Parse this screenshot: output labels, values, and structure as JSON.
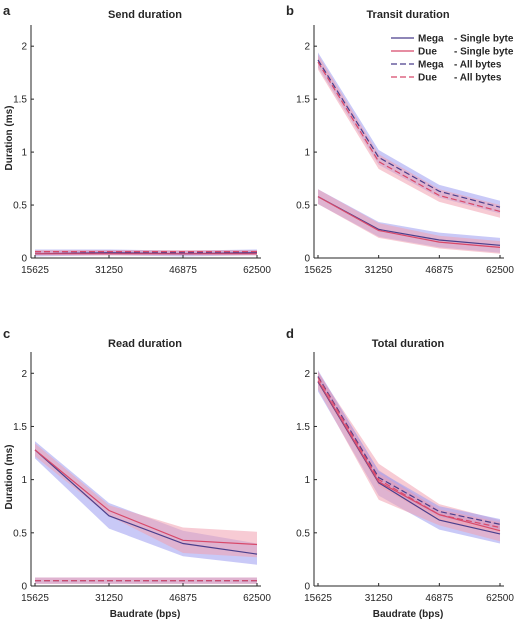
{
  "colors": {
    "mega": "#4a3f8c",
    "due": "#d8496a",
    "mega_band": "#9c9cf0",
    "due_band": "#f0a0b0",
    "axis": "#262626"
  },
  "legend": [
    {
      "name": "Mega",
      "desc": "Single byte",
      "series": "mega",
      "dash": false
    },
    {
      "name": "Due",
      "desc": "Single byte",
      "series": "due",
      "dash": false
    },
    {
      "name": "Mega",
      "desc": "All bytes",
      "series": "mega",
      "dash": true
    },
    {
      "name": "Due",
      "desc": "All bytes",
      "series": "due",
      "dash": true
    }
  ],
  "chart_data": [
    {
      "type": "line",
      "letter": "a",
      "title": "Send duration",
      "xlabel": "",
      "ylabel": "Duration (ms)",
      "ylim": [
        0,
        2.2
      ],
      "x": [
        15625,
        31250,
        46875,
        62500
      ],
      "x_tick_labels": [
        "15625",
        "31250",
        "46875",
        "62500"
      ],
      "y_ticks": [
        0,
        0.5,
        1,
        1.5,
        2
      ],
      "y_tick_labels": [
        "0",
        "0.5",
        "1",
        "1.5",
        "2"
      ],
      "legend": false,
      "grid": false,
      "series": [
        {
          "name": "Mega - Single byte",
          "values": [
            0.04,
            0.05,
            0.04,
            0.05
          ],
          "band": [
            0.025,
            0.025,
            0.025,
            0.025
          ]
        },
        {
          "name": "Due - Single byte",
          "values": [
            0.04,
            0.04,
            0.04,
            0.04
          ],
          "band": [
            0.015,
            0.015,
            0.015,
            0.015
          ]
        },
        {
          "name": "Mega - All bytes",
          "values": [
            0.06,
            0.06,
            0.05,
            0.06
          ],
          "band": [
            0.02,
            0.02,
            0.02,
            0.02
          ]
        },
        {
          "name": "Due - All bytes",
          "values": [
            0.06,
            0.06,
            0.06,
            0.06
          ],
          "band": [
            0.015,
            0.015,
            0.015,
            0.015
          ]
        }
      ]
    },
    {
      "type": "line",
      "letter": "b",
      "title": "Transit duration",
      "xlabel": "",
      "ylabel": "",
      "ylim": [
        0,
        2.2
      ],
      "x": [
        15625,
        31250,
        46875,
        62500
      ],
      "x_tick_labels": [
        "15625",
        "31250",
        "46875",
        "62500"
      ],
      "y_ticks": [
        0,
        0.5,
        1,
        1.5,
        2
      ],
      "y_tick_labels": [
        "0",
        "0.5",
        "1",
        "1.5",
        "2"
      ],
      "legend": true,
      "legend_position": "top-right",
      "grid": false,
      "series": [
        {
          "name": "Mega - Single byte",
          "values": [
            0.58,
            0.27,
            0.17,
            0.12
          ],
          "band": [
            0.07,
            0.07,
            0.07,
            0.07
          ]
        },
        {
          "name": "Due - Single byte",
          "values": [
            0.58,
            0.26,
            0.15,
            0.1
          ],
          "band": [
            0.07,
            0.07,
            0.06,
            0.06
          ]
        },
        {
          "name": "Mega - All bytes",
          "values": [
            1.87,
            0.95,
            0.63,
            0.48
          ],
          "band": [
            0.07,
            0.07,
            0.06,
            0.06
          ]
        },
        {
          "name": "Due - All bytes",
          "values": [
            1.85,
            0.91,
            0.59,
            0.44
          ],
          "band": [
            0.07,
            0.07,
            0.06,
            0.06
          ]
        }
      ]
    },
    {
      "type": "line",
      "letter": "c",
      "title": "Read duration",
      "xlabel": "Baudrate (bps)",
      "ylabel": "Duration (ms)",
      "ylim": [
        0,
        2.2
      ],
      "x": [
        15625,
        31250,
        46875,
        62500
      ],
      "x_tick_labels": [
        "15625",
        "31250",
        "46875",
        "62500"
      ],
      "y_ticks": [
        0,
        0.5,
        1,
        1.5,
        2
      ],
      "y_tick_labels": [
        "0",
        "0.5",
        "1",
        "1.5",
        "2"
      ],
      "legend": false,
      "grid": false,
      "series": [
        {
          "name": "Mega - Single byte",
          "values": [
            1.28,
            0.66,
            0.4,
            0.3
          ],
          "band": [
            0.08,
            0.12,
            0.12,
            0.1
          ]
        },
        {
          "name": "Due - Single byte",
          "values": [
            1.28,
            0.71,
            0.43,
            0.39
          ],
          "band": [
            0.06,
            0.05,
            0.12,
            0.12
          ]
        },
        {
          "name": "Mega - All bytes",
          "values": [
            0.05,
            0.05,
            0.05,
            0.05
          ],
          "band": [
            0.03,
            0.03,
            0.03,
            0.03
          ]
        },
        {
          "name": "Due - All bytes",
          "values": [
            0.05,
            0.05,
            0.05,
            0.05
          ],
          "band": [
            0.03,
            0.03,
            0.03,
            0.03
          ]
        }
      ]
    },
    {
      "type": "line",
      "letter": "d",
      "title": "Total duration",
      "xlabel": "Baudrate (bps)",
      "ylabel": "",
      "ylim": [
        0,
        2.2
      ],
      "x": [
        15625,
        31250,
        46875,
        62500
      ],
      "x_tick_labels": [
        "15625",
        "31250",
        "46875",
        "62500"
      ],
      "y_ticks": [
        0,
        0.5,
        1,
        1.5,
        2
      ],
      "y_tick_labels": [
        "0",
        "0.5",
        "1",
        "1.5",
        "2"
      ],
      "legend": false,
      "grid": false,
      "series": [
        {
          "name": "Mega - Single byte",
          "values": [
            1.92,
            0.97,
            0.62,
            0.49
          ],
          "band": [
            0.09,
            0.12,
            0.09,
            0.09
          ]
        },
        {
          "name": "Due - Single byte",
          "values": [
            1.93,
            0.98,
            0.67,
            0.52
          ],
          "band": [
            0.08,
            0.17,
            0.1,
            0.1
          ]
        },
        {
          "name": "Mega - All bytes",
          "values": [
            1.97,
            1.02,
            0.7,
            0.58
          ],
          "band": [
            0.06,
            0.06,
            0.05,
            0.05
          ]
        },
        {
          "name": "Due - All bytes",
          "values": [
            1.96,
            1.0,
            0.67,
            0.55
          ],
          "band": [
            0.06,
            0.06,
            0.05,
            0.05
          ]
        }
      ]
    }
  ]
}
